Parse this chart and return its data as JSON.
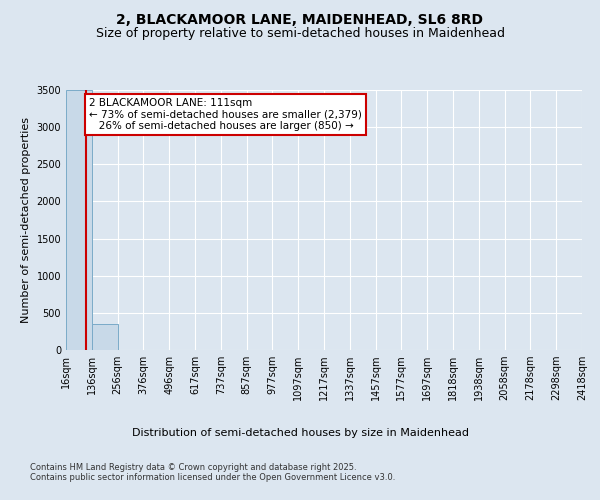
{
  "title": "2, BLACKAMOOR LANE, MAIDENHEAD, SL6 8RD",
  "subtitle": "Size of property relative to semi-detached houses in Maidenhead",
  "xlabel": "Distribution of semi-detached houses by size in Maidenhead",
  "ylabel": "Number of semi-detached properties",
  "property_size": 111,
  "pct_smaller": 73,
  "count_smaller": 2379,
  "pct_larger": 26,
  "count_larger": 850,
  "annotation_label": "2 BLACKAMOOR LANE: 111sqm",
  "bin_edges": [
    16,
    136,
    256,
    376,
    496,
    617,
    737,
    857,
    977,
    1097,
    1217,
    1337,
    1457,
    1577,
    1697,
    1818,
    1938,
    2058,
    2178,
    2298,
    2418
  ],
  "bin_heights": [
    3500,
    350,
    0,
    0,
    0,
    0,
    0,
    0,
    0,
    0,
    0,
    0,
    0,
    0,
    0,
    0,
    0,
    0,
    0,
    0
  ],
  "bar_color": "#c8d9e8",
  "bar_edge_color": "#7aaac8",
  "vline_color": "#cc0000",
  "vline_x": 111,
  "annotation_box_color": "#cc0000",
  "annotation_text_color": "#000000",
  "ylim": [
    0,
    3500
  ],
  "background_color": "#dce6f0",
  "plot_background": "#dce6f0",
  "grid_color": "#ffffff",
  "footer": "Contains HM Land Registry data © Crown copyright and database right 2025.\nContains public sector information licensed under the Open Government Licence v3.0.",
  "title_fontsize": 10,
  "subtitle_fontsize": 9,
  "tick_fontsize": 7,
  "ylabel_fontsize": 8,
  "xlabel_fontsize": 8,
  "annotation_fontsize": 7.5,
  "footer_fontsize": 6
}
